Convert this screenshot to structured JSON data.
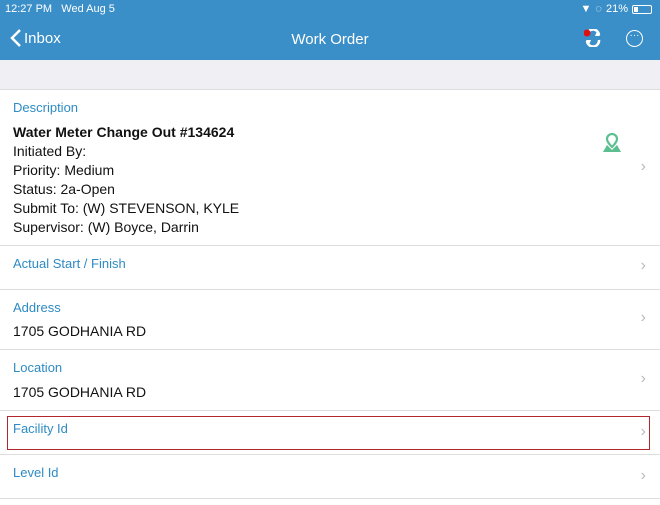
{
  "status_bar": {
    "time": "12:27 PM",
    "date": "Wed Aug 5",
    "battery": "21%",
    "battery_level": 0.21
  },
  "nav": {
    "back_label": "Inbox",
    "title": "Work Order",
    "sync_icon": "sync-icon",
    "more_icon": "more-icon"
  },
  "description": {
    "label": "Description",
    "title": "Water Meter Change Out #134624",
    "lines": [
      "Initiated By:",
      "Priority: Medium",
      "Status: 2a-Open",
      "Submit To: (W) STEVENSON, KYLE",
      "Supervisor: (W) Boyce, Darrin"
    ],
    "icon": "map-pin-icon",
    "icon_color": "#5bbf8f"
  },
  "actual": {
    "label": "Actual Start / Finish"
  },
  "address": {
    "label": "Address",
    "value": "1705 GODHANIA RD"
  },
  "location": {
    "label": "Location",
    "value": "1705 GODHANIA RD"
  },
  "facility": {
    "label": "Facility Id"
  },
  "level": {
    "label": "Level Id"
  },
  "colors": {
    "header": "#3b8fc9",
    "label": "#2d8bc4",
    "highlight": "#b3262e"
  }
}
